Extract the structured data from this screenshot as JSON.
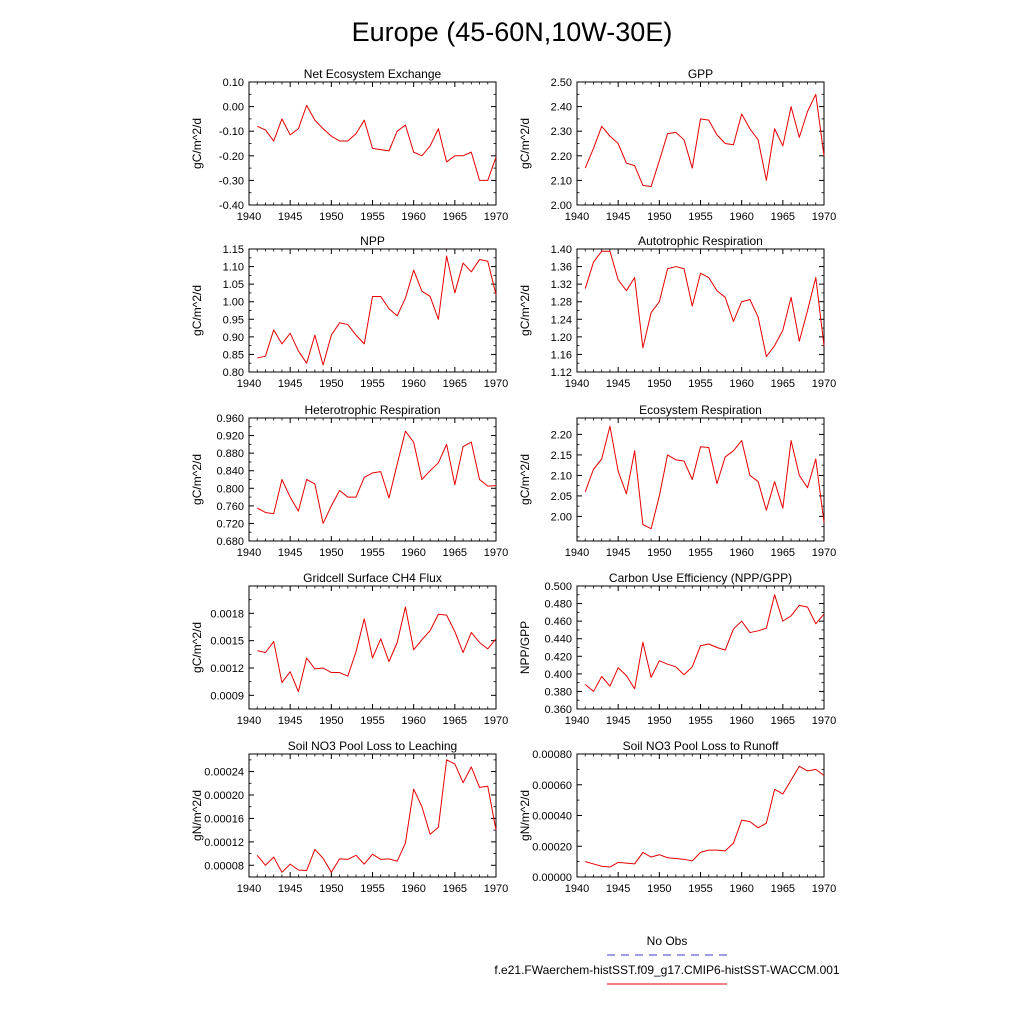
{
  "figure": {
    "title": "Europe (45-60N,10W-30E)",
    "x_values": [
      1941,
      1942,
      1943,
      1944,
      1945,
      1946,
      1947,
      1948,
      1949,
      1950,
      1951,
      1952,
      1953,
      1954,
      1955,
      1956,
      1957,
      1958,
      1959,
      1960,
      1961,
      1962,
      1963,
      1964,
      1965,
      1966,
      1967,
      1968,
      1969,
      1970
    ],
    "legend": [
      {
        "label": "No Obs",
        "color": "#3a3ad6",
        "style": "dashed"
      },
      {
        "label": "f.e21.FWaerchem-histSST.f09_g17.CMIP6-histSST-WACCM.001",
        "color": "#e60000",
        "style": "solid"
      }
    ]
  },
  "chart_data": [
    {
      "type": "line",
      "title": "Net Ecosystem Exchange",
      "ylabel": "gC/m^2/d",
      "xlim": [
        1940,
        1970
      ],
      "ylim": [
        -0.4,
        0.1
      ],
      "xticks": [
        "1940",
        "1945",
        "1950",
        "1955",
        "1960",
        "1965",
        "1970"
      ],
      "yticks": [
        "-0.40",
        "-0.30",
        "-0.20",
        "-0.10",
        "0.00",
        "0.10"
      ],
      "series": [
        {
          "color": "#e60000",
          "values": [
            -0.08,
            -0.095,
            -0.14,
            -0.05,
            -0.115,
            -0.09,
            0.005,
            -0.055,
            -0.09,
            -0.12,
            -0.14,
            -0.14,
            -0.11,
            -0.055,
            -0.17,
            -0.175,
            -0.18,
            -0.1,
            -0.075,
            -0.185,
            -0.2,
            -0.16,
            -0.09,
            -0.225,
            -0.2,
            -0.2,
            -0.185,
            -0.3,
            -0.3,
            -0.205
          ]
        }
      ]
    },
    {
      "type": "line",
      "title": "GPP",
      "ylabel": "gC/m^2/d",
      "xlim": [
        1940,
        1970
      ],
      "ylim": [
        2.0,
        2.5
      ],
      "xticks": [
        "1940",
        "1945",
        "1950",
        "1955",
        "1960",
        "1965",
        "1970"
      ],
      "yticks": [
        "2.00",
        "2.10",
        "2.20",
        "2.30",
        "2.40",
        "2.50"
      ],
      "series": [
        {
          "color": "#e60000",
          "values": [
            2.15,
            2.23,
            2.32,
            2.28,
            2.25,
            2.17,
            2.16,
            2.08,
            2.075,
            2.18,
            2.29,
            2.295,
            2.265,
            2.15,
            2.35,
            2.345,
            2.285,
            2.25,
            2.245,
            2.37,
            2.31,
            2.265,
            2.1,
            2.31,
            2.24,
            2.4,
            2.275,
            2.38,
            2.45,
            2.2
          ]
        }
      ]
    },
    {
      "type": "line",
      "title": "NPP",
      "ylabel": "gC/m^2/d",
      "xlim": [
        1940,
        1970
      ],
      "ylim": [
        0.8,
        1.15
      ],
      "xticks": [
        "1940",
        "1945",
        "1950",
        "1955",
        "1960",
        "1965",
        "1970"
      ],
      "yticks": [
        "0.80",
        "0.85",
        "0.90",
        "0.95",
        "1.00",
        "1.05",
        "1.10",
        "1.15"
      ],
      "series": [
        {
          "color": "#e60000",
          "values": [
            0.84,
            0.845,
            0.92,
            0.88,
            0.91,
            0.86,
            0.825,
            0.905,
            0.82,
            0.905,
            0.94,
            0.935,
            0.905,
            0.88,
            1.015,
            1.015,
            0.98,
            0.96,
            1.01,
            1.09,
            1.03,
            1.015,
            0.95,
            1.13,
            1.025,
            1.11,
            1.085,
            1.12,
            1.115,
            1.02
          ]
        }
      ]
    },
    {
      "type": "line",
      "title": "Autotrophic Respiration",
      "ylabel": "gC/m^2/d",
      "xlim": [
        1940,
        1970
      ],
      "ylim": [
        1.12,
        1.4
      ],
      "xticks": [
        "1940",
        "1945",
        "1950",
        "1955",
        "1960",
        "1965",
        "1970"
      ],
      "yticks": [
        "1.12",
        "1.16",
        "1.20",
        "1.24",
        "1.28",
        "1.32",
        "1.36",
        "1.40"
      ],
      "series": [
        {
          "color": "#e60000",
          "values": [
            1.31,
            1.37,
            1.395,
            1.395,
            1.33,
            1.305,
            1.335,
            1.175,
            1.255,
            1.28,
            1.355,
            1.36,
            1.355,
            1.27,
            1.345,
            1.335,
            1.305,
            1.29,
            1.235,
            1.28,
            1.285,
            1.245,
            1.155,
            1.18,
            1.215,
            1.29,
            1.19,
            1.26,
            1.335,
            1.18
          ]
        }
      ]
    },
    {
      "type": "line",
      "title": "Heterotrophic Respiration",
      "ylabel": "gC/m^2/d",
      "xlim": [
        1940,
        1970
      ],
      "ylim": [
        0.68,
        0.96
      ],
      "xticks": [
        "1940",
        "1945",
        "1950",
        "1955",
        "1960",
        "1965",
        "1970"
      ],
      "yticks": [
        "0.680",
        "0.720",
        "0.760",
        "0.800",
        "0.840",
        "0.880",
        "0.920",
        "0.960"
      ],
      "series": [
        {
          "color": "#e60000",
          "values": [
            0.755,
            0.745,
            0.742,
            0.82,
            0.78,
            0.748,
            0.82,
            0.81,
            0.72,
            0.76,
            0.795,
            0.78,
            0.78,
            0.825,
            0.835,
            0.838,
            0.778,
            0.855,
            0.93,
            0.905,
            0.82,
            0.84,
            0.858,
            0.9,
            0.808,
            0.895,
            0.905,
            0.82,
            0.805,
            0.806
          ]
        }
      ]
    },
    {
      "type": "line",
      "title": "Ecosystem Respiration",
      "ylabel": "gC/m^2/d",
      "xlim": [
        1940,
        1970
      ],
      "ylim": [
        1.94,
        2.24
      ],
      "xticks": [
        "1940",
        "1945",
        "1950",
        "1955",
        "1960",
        "1965",
        "1970"
      ],
      "yticks": [
        "2.00",
        "2.05",
        "2.10",
        "2.15",
        "2.20"
      ],
      "series": [
        {
          "color": "#e60000",
          "values": [
            2.06,
            2.115,
            2.14,
            2.22,
            2.11,
            2.055,
            2.16,
            1.98,
            1.97,
            2.05,
            2.15,
            2.138,
            2.135,
            2.09,
            2.17,
            2.168,
            2.08,
            2.145,
            2.16,
            2.185,
            2.1,
            2.085,
            2.015,
            2.085,
            2.02,
            2.185,
            2.1,
            2.07,
            2.14,
            1.985
          ]
        }
      ]
    },
    {
      "type": "line",
      "title": "Gridcell Surface CH4 Flux",
      "ylabel": "gC/m^2/d",
      "xlim": [
        1940,
        1970
      ],
      "ylim": [
        0.00075,
        0.0021
      ],
      "xticks": [
        "1940",
        "1945",
        "1950",
        "1955",
        "1960",
        "1965",
        "1970"
      ],
      "yticks": [
        "0.0009",
        "0.0012",
        "0.0015",
        "0.0018"
      ],
      "series": [
        {
          "color": "#e60000",
          "values": [
            0.00139,
            0.00137,
            0.00149,
            0.00104,
            0.00116,
            0.00094,
            0.00131,
            0.00119,
            0.0012,
            0.00115,
            0.00115,
            0.00111,
            0.00138,
            0.00174,
            0.00131,
            0.00152,
            0.00127,
            0.00148,
            0.00187,
            0.0014,
            0.00151,
            0.00161,
            0.00179,
            0.00178,
            0.0016,
            0.00137,
            0.00159,
            0.00148,
            0.00141,
            0.00152
          ]
        }
      ]
    },
    {
      "type": "line",
      "title": "Carbon Use Efficiency (NPP/GPP)",
      "ylabel": "NPP/GPP",
      "xlim": [
        1940,
        1970
      ],
      "ylim": [
        0.36,
        0.5
      ],
      "xticks": [
        "1940",
        "1945",
        "1950",
        "1955",
        "1960",
        "1965",
        "1970"
      ],
      "yticks": [
        "0.360",
        "0.380",
        "0.400",
        "0.420",
        "0.440",
        "0.460",
        "0.480",
        "0.500"
      ],
      "series": [
        {
          "color": "#e60000",
          "values": [
            0.388,
            0.38,
            0.397,
            0.386,
            0.407,
            0.398,
            0.383,
            0.436,
            0.396,
            0.415,
            0.411,
            0.408,
            0.399,
            0.408,
            0.432,
            0.434,
            0.43,
            0.427,
            0.451,
            0.46,
            0.447,
            0.449,
            0.452,
            0.49,
            0.46,
            0.466,
            0.478,
            0.476,
            0.457,
            0.468
          ]
        }
      ]
    },
    {
      "type": "line",
      "title": "Soil NO3 Pool Loss to Leaching",
      "ylabel": "gN/m^2/d",
      "xlim": [
        1940,
        1970
      ],
      "ylim": [
        6e-05,
        0.00027
      ],
      "xticks": [
        "1940",
        "1945",
        "1950",
        "1955",
        "1960",
        "1965",
        "1970"
      ],
      "yticks": [
        "0.00008",
        "0.00012",
        "0.00016",
        "0.00020",
        "0.00024"
      ],
      "series": [
        {
          "color": "#e60000",
          "values": [
            9.7e-05,
            8e-05,
            9.4e-05,
            6.8e-05,
            8.2e-05,
            7.2e-05,
            7.1e-05,
            0.000107,
            9.2e-05,
            6.8e-05,
            9.1e-05,
            9e-05,
            9.7e-05,
            8.2e-05,
            9.9e-05,
            9e-05,
            9.1e-05,
            8.7e-05,
            0.000118,
            0.00021,
            0.00018,
            0.000133,
            0.000145,
            0.00026,
            0.000253,
            0.000221,
            0.000248,
            0.000213,
            0.000215,
            0.00014
          ]
        }
      ]
    },
    {
      "type": "line",
      "title": "Soil NO3 Pool Loss to Runoff",
      "ylabel": "gN/m^2/d",
      "xlim": [
        1940,
        1970
      ],
      "ylim": [
        0.0,
        0.0008
      ],
      "xticks": [
        "1940",
        "1945",
        "1950",
        "1955",
        "1960",
        "1965",
        "1970"
      ],
      "yticks": [
        "0.00000",
        "0.00020",
        "0.00040",
        "0.00060",
        "0.00080"
      ],
      "series": [
        {
          "color": "#e60000",
          "values": [
            0.0001,
            8.5e-05,
            7e-05,
            6.5e-05,
            9.5e-05,
            9e-05,
            8.5e-05,
            0.00016,
            0.00013,
            0.000145,
            0.000125,
            0.00012,
            0.000115,
            0.000105,
            0.00016,
            0.000175,
            0.000175,
            0.00017,
            0.00022,
            0.00037,
            0.00036,
            0.00032,
            0.00035,
            0.00057,
            0.00054,
            0.00063,
            0.00072,
            0.00069,
            0.0007,
            0.00066
          ]
        }
      ]
    }
  ]
}
